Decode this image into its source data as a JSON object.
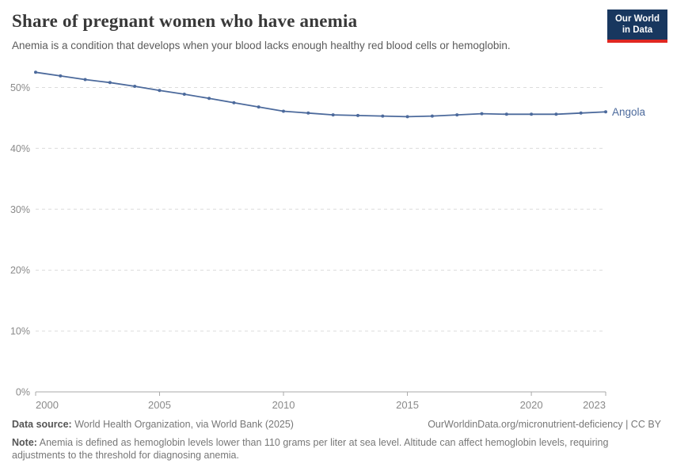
{
  "header": {
    "title": "Share of pregnant women who have anemia",
    "subtitle": "Anemia is a condition that develops when your blood lacks enough healthy red blood cells or hemoglobin."
  },
  "logo": {
    "line1": "Our World",
    "line2": "in Data",
    "bg_color": "#18375F",
    "accent_color": "#E02721"
  },
  "chart_data": {
    "type": "line",
    "title": "Share of pregnant women who have anemia",
    "entity_label": "Angola",
    "line_color": "#4C6A9C",
    "x": [
      2000,
      2001,
      2002,
      2003,
      2004,
      2005,
      2006,
      2007,
      2008,
      2009,
      2010,
      2011,
      2012,
      2013,
      2014,
      2015,
      2016,
      2017,
      2018,
      2019,
      2020,
      2021,
      2022,
      2023
    ],
    "series": [
      {
        "name": "Angola",
        "color": "#4C6A9C",
        "values": [
          52.5,
          51.9,
          51.3,
          50.8,
          50.2,
          49.5,
          48.9,
          48.2,
          47.5,
          46.8,
          46.1,
          45.8,
          45.5,
          45.4,
          45.3,
          45.2,
          45.3,
          45.5,
          45.7,
          45.6,
          45.6,
          45.6,
          45.8,
          46.0
        ]
      }
    ],
    "xlim": [
      2000,
      2023
    ],
    "ylim": [
      0,
      55
    ],
    "x_ticks": [
      {
        "value": 2000,
        "label": "2000"
      },
      {
        "value": 2005,
        "label": "2005"
      },
      {
        "value": 2010,
        "label": "2010"
      },
      {
        "value": 2015,
        "label": "2015"
      },
      {
        "value": 2020,
        "label": "2020"
      },
      {
        "value": 2023,
        "label": "2023"
      }
    ],
    "y_ticks": [
      {
        "value": 0,
        "label": "0%"
      },
      {
        "value": 10,
        "label": "10%"
      },
      {
        "value": 20,
        "label": "20%"
      },
      {
        "value": 30,
        "label": "30%"
      },
      {
        "value": 40,
        "label": "40%"
      },
      {
        "value": 50,
        "label": "50%"
      }
    ],
    "grid": "horizontal-dashed",
    "legend_position": "end-of-line"
  },
  "footer": {
    "datasource_label": "Data source:",
    "datasource_text": " World Health Organization, via World Bank (2025)",
    "link_text": "OurWorldinData.org/micronutrient-deficiency | CC BY",
    "note_label": "Note:",
    "note_text": " Anemia is defined as hemoglobin levels lower than 110 grams per liter at sea level. Altitude can affect hemoglobin levels, requiring adjustments to the threshold for diagnosing anemia."
  }
}
